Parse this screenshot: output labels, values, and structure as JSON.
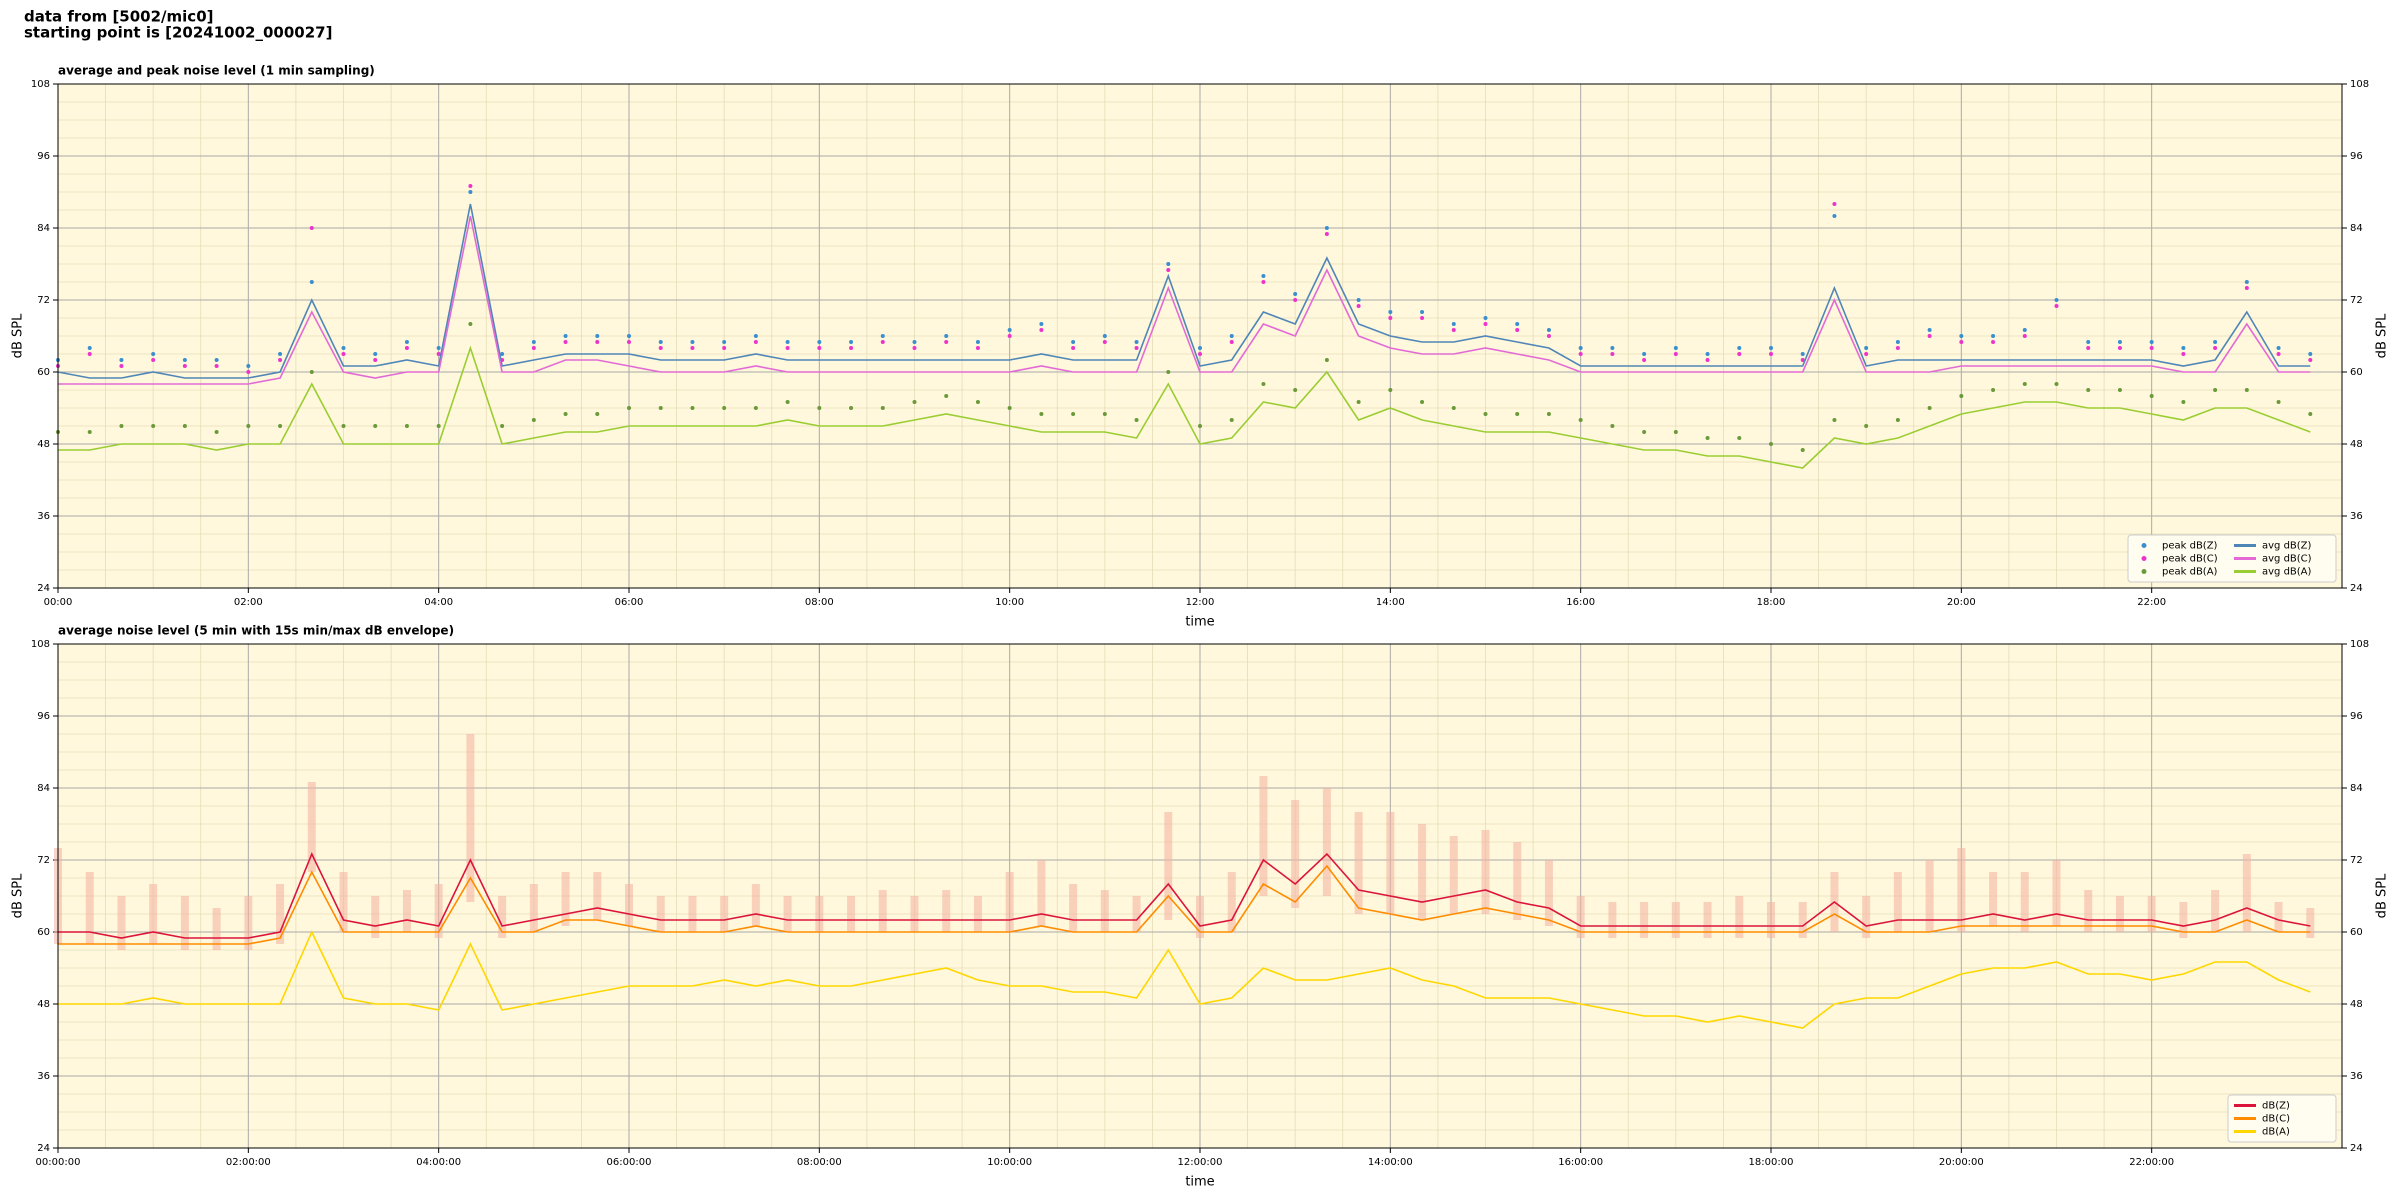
{
  "header": [
    "data from [5002/mic0]",
    "starting point is [20241002_000027]"
  ],
  "chart_data": [
    {
      "type": "line",
      "title": "average and peak noise level (1 min sampling)",
      "xlabel": "time",
      "ylabel": "dB SPL",
      "background": "#fff8dc",
      "grid": true,
      "legend": "lower right",
      "xlim": [
        0,
        1440
      ],
      "ylim": [
        24,
        108
      ],
      "yticks": [
        24,
        36,
        48,
        60,
        72,
        84,
        96,
        108
      ],
      "xticks": [
        {
          "value": 0,
          "label": "00:00"
        },
        {
          "value": 120,
          "label": "02:00"
        },
        {
          "value": 240,
          "label": "04:00"
        },
        {
          "value": 360,
          "label": "06:00"
        },
        {
          "value": 480,
          "label": "08:00"
        },
        {
          "value": 600,
          "label": "10:00"
        },
        {
          "value": 720,
          "label": "12:00"
        },
        {
          "value": 840,
          "label": "14:00"
        },
        {
          "value": 960,
          "label": "16:00"
        },
        {
          "value": 1080,
          "label": "18:00"
        },
        {
          "value": 1200,
          "label": "20:00"
        },
        {
          "value": 1320,
          "label": "22:00"
        }
      ],
      "x": [
        0,
        20,
        40,
        60,
        80,
        100,
        120,
        140,
        160,
        180,
        200,
        220,
        240,
        260,
        280,
        300,
        320,
        340,
        360,
        380,
        400,
        420,
        440,
        460,
        480,
        500,
        520,
        540,
        560,
        580,
        600,
        620,
        640,
        660,
        680,
        700,
        720,
        740,
        760,
        780,
        800,
        820,
        840,
        860,
        880,
        900,
        920,
        940,
        960,
        980,
        1000,
        1020,
        1040,
        1060,
        1080,
        1100,
        1120,
        1140,
        1160,
        1180,
        1200,
        1220,
        1240,
        1260,
        1280,
        1300,
        1320,
        1340,
        1360,
        1380,
        1400,
        1420
      ],
      "series": [
        {
          "name": "peak dB(Z)",
          "type": "scatter",
          "color": "#3a8fd0",
          "values": [
            62,
            64,
            62,
            63,
            62,
            62,
            61,
            63,
            75,
            64,
            63,
            65,
            64,
            90,
            63,
            65,
            66,
            66,
            66,
            65,
            65,
            65,
            66,
            65,
            65,
            65,
            66,
            65,
            66,
            65,
            67,
            68,
            65,
            66,
            65,
            78,
            64,
            66,
            76,
            73,
            84,
            72,
            70,
            70,
            68,
            69,
            68,
            67,
            64,
            64,
            63,
            64,
            63,
            64,
            64,
            63,
            86,
            64,
            65,
            67,
            66,
            66,
            67,
            72,
            65,
            65,
            65,
            64,
            65,
            75,
            64,
            63
          ]
        },
        {
          "name": "peak dB(C)",
          "type": "scatter",
          "color": "#ee33cc",
          "values": [
            61,
            63,
            61,
            62,
            61,
            61,
            60,
            62,
            84,
            63,
            62,
            64,
            63,
            91,
            62,
            64,
            65,
            65,
            65,
            64,
            64,
            64,
            65,
            64,
            64,
            64,
            65,
            64,
            65,
            64,
            66,
            67,
            64,
            65,
            64,
            77,
            63,
            65,
            75,
            72,
            83,
            71,
            69,
            69,
            67,
            68,
            67,
            66,
            63,
            63,
            62,
            63,
            62,
            63,
            63,
            62,
            88,
            63,
            64,
            66,
            65,
            65,
            66,
            71,
            64,
            64,
            64,
            63,
            64,
            74,
            63,
            62
          ]
        },
        {
          "name": "peak dB(A)",
          "type": "scatter",
          "color": "#6a9a3a",
          "values": [
            50,
            50,
            51,
            51,
            51,
            50,
            51,
            51,
            60,
            51,
            51,
            51,
            51,
            68,
            51,
            52,
            53,
            53,
            54,
            54,
            54,
            54,
            54,
            55,
            54,
            54,
            54,
            55,
            56,
            55,
            54,
            53,
            53,
            53,
            52,
            60,
            51,
            52,
            58,
            57,
            62,
            55,
            57,
            55,
            54,
            53,
            53,
            53,
            52,
            51,
            50,
            50,
            49,
            49,
            48,
            47,
            52,
            51,
            52,
            54,
            56,
            57,
            58,
            58,
            57,
            57,
            56,
            55,
            57,
            57,
            55,
            53
          ]
        },
        {
          "name": "avg dB(Z)",
          "type": "line",
          "color": "#4f86b8",
          "values": [
            60,
            59,
            59,
            60,
            59,
            59,
            59,
            60,
            72,
            61,
            61,
            62,
            61,
            88,
            61,
            62,
            63,
            63,
            63,
            62,
            62,
            62,
            63,
            62,
            62,
            62,
            62,
            62,
            62,
            62,
            62,
            63,
            62,
            62,
            62,
            76,
            61,
            62,
            70,
            68,
            79,
            68,
            66,
            65,
            65,
            66,
            65,
            64,
            61,
            61,
            61,
            61,
            61,
            61,
            61,
            61,
            74,
            61,
            62,
            62,
            62,
            62,
            62,
            62,
            62,
            62,
            62,
            61,
            62,
            70,
            61,
            61
          ]
        },
        {
          "name": "avg dB(C)",
          "type": "line",
          "color": "#e36ad6",
          "values": [
            58,
            58,
            58,
            58,
            58,
            58,
            58,
            59,
            70,
            60,
            59,
            60,
            60,
            86,
            60,
            60,
            62,
            62,
            61,
            60,
            60,
            60,
            61,
            60,
            60,
            60,
            60,
            60,
            60,
            60,
            60,
            61,
            60,
            60,
            60,
            74,
            60,
            60,
            68,
            66,
            77,
            66,
            64,
            63,
            63,
            64,
            63,
            62,
            60,
            60,
            60,
            60,
            60,
            60,
            60,
            60,
            72,
            60,
            60,
            60,
            61,
            61,
            61,
            61,
            61,
            61,
            61,
            60,
            60,
            68,
            60,
            60
          ]
        },
        {
          "name": "avg dB(A)",
          "type": "line",
          "color": "#9acd32",
          "values": [
            47,
            47,
            48,
            48,
            48,
            47,
            48,
            48,
            58,
            48,
            48,
            48,
            48,
            64,
            48,
            49,
            50,
            50,
            51,
            51,
            51,
            51,
            51,
            52,
            51,
            51,
            51,
            52,
            53,
            52,
            51,
            50,
            50,
            50,
            49,
            58,
            48,
            49,
            55,
            54,
            60,
            52,
            54,
            52,
            51,
            50,
            50,
            50,
            49,
            48,
            47,
            47,
            46,
            46,
            45,
            44,
            49,
            48,
            49,
            51,
            53,
            54,
            55,
            55,
            54,
            54,
            53,
            52,
            54,
            54,
            52,
            50
          ]
        }
      ]
    },
    {
      "type": "line",
      "title": "average noise level (5 min with 15s min/max dB envelope)",
      "xlabel": "time",
      "ylabel": "dB SPL",
      "background": "#fff8dc",
      "grid": true,
      "legend": "lower right",
      "xlim": [
        0,
        1440
      ],
      "ylim": [
        24,
        108
      ],
      "yticks": [
        24,
        36,
        48,
        60,
        72,
        84,
        96,
        108
      ],
      "xticks": [
        {
          "value": 0,
          "label": "00:00:00"
        },
        {
          "value": 120,
          "label": "02:00:00"
        },
        {
          "value": 240,
          "label": "04:00:00"
        },
        {
          "value": 360,
          "label": "06:00:00"
        },
        {
          "value": 480,
          "label": "08:00:00"
        },
        {
          "value": 600,
          "label": "10:00:00"
        },
        {
          "value": 720,
          "label": "12:00:00"
        },
        {
          "value": 840,
          "label": "14:00:00"
        },
        {
          "value": 960,
          "label": "16:00:00"
        },
        {
          "value": 1080,
          "label": "18:00:00"
        },
        {
          "value": 1200,
          "label": "20:00:00"
        },
        {
          "value": 1320,
          "label": "22:00:00"
        }
      ],
      "x": [
        0,
        20,
        40,
        60,
        80,
        100,
        120,
        140,
        160,
        180,
        200,
        220,
        240,
        260,
        280,
        300,
        320,
        340,
        360,
        380,
        400,
        420,
        440,
        460,
        480,
        500,
        520,
        540,
        560,
        580,
        600,
        620,
        640,
        660,
        680,
        700,
        720,
        740,
        760,
        780,
        800,
        820,
        840,
        860,
        880,
        900,
        920,
        940,
        960,
        980,
        1000,
        1020,
        1040,
        1060,
        1080,
        1100,
        1120,
        1140,
        1160,
        1180,
        1200,
        1220,
        1240,
        1260,
        1280,
        1300,
        1320,
        1340,
        1360,
        1380,
        1400,
        1420
      ],
      "series": [
        {
          "type": "band",
          "color": "#f4b0a0",
          "lower": [
            58,
            58,
            57,
            58,
            57,
            57,
            57,
            58,
            70,
            60,
            59,
            60,
            59,
            65,
            59,
            60,
            61,
            62,
            61,
            60,
            60,
            60,
            61,
            60,
            60,
            60,
            60,
            60,
            60,
            60,
            60,
            61,
            60,
            60,
            60,
            62,
            59,
            60,
            66,
            64,
            66,
            63,
            63,
            62,
            63,
            63,
            62,
            61,
            59,
            59,
            59,
            59,
            59,
            59,
            59,
            59,
            60,
            59,
            60,
            60,
            60,
            61,
            60,
            61,
            60,
            60,
            60,
            59,
            60,
            60,
            60,
            59
          ],
          "upper": [
            74,
            70,
            66,
            68,
            66,
            64,
            66,
            68,
            85,
            70,
            66,
            67,
            68,
            93,
            66,
            68,
            70,
            70,
            68,
            66,
            66,
            66,
            68,
            66,
            66,
            66,
            67,
            66,
            67,
            66,
            70,
            72,
            68,
            67,
            66,
            80,
            66,
            70,
            86,
            82,
            84,
            80,
            80,
            78,
            76,
            77,
            75,
            72,
            66,
            65,
            65,
            65,
            65,
            66,
            65,
            65,
            70,
            66,
            70,
            72,
            74,
            70,
            70,
            72,
            67,
            66,
            66,
            65,
            67,
            73,
            65,
            64
          ]
        },
        {
          "name": "dB(Z)",
          "type": "line",
          "color": "#dc143c",
          "values": [
            60,
            60,
            59,
            60,
            59,
            59,
            59,
            60,
            73,
            62,
            61,
            62,
            61,
            72,
            61,
            62,
            63,
            64,
            63,
            62,
            62,
            62,
            63,
            62,
            62,
            62,
            62,
            62,
            62,
            62,
            62,
            63,
            62,
            62,
            62,
            68,
            61,
            62,
            72,
            68,
            73,
            67,
            66,
            65,
            66,
            67,
            65,
            64,
            61,
            61,
            61,
            61,
            61,
            61,
            61,
            61,
            65,
            61,
            62,
            62,
            62,
            63,
            62,
            63,
            62,
            62,
            62,
            61,
            62,
            64,
            62,
            61
          ]
        },
        {
          "name": "dB(C)",
          "type": "line",
          "color": "#ff8c00",
          "values": [
            58,
            58,
            58,
            58,
            58,
            58,
            58,
            59,
            70,
            60,
            60,
            60,
            60,
            69,
            60,
            60,
            62,
            62,
            61,
            60,
            60,
            60,
            61,
            60,
            60,
            60,
            60,
            60,
            60,
            60,
            60,
            61,
            60,
            60,
            60,
            66,
            60,
            60,
            68,
            65,
            71,
            64,
            63,
            62,
            63,
            64,
            63,
            62,
            60,
            60,
            60,
            60,
            60,
            60,
            60,
            60,
            63,
            60,
            60,
            60,
            61,
            61,
            61,
            61,
            61,
            61,
            61,
            60,
            60,
            62,
            60,
            60
          ]
        },
        {
          "name": "dB(A)",
          "type": "line",
          "color": "#ffd700",
          "values": [
            48,
            48,
            48,
            49,
            48,
            48,
            48,
            48,
            60,
            49,
            48,
            48,
            47,
            58,
            47,
            48,
            49,
            50,
            51,
            51,
            51,
            52,
            51,
            52,
            51,
            51,
            52,
            53,
            54,
            52,
            51,
            51,
            50,
            50,
            49,
            57,
            48,
            49,
            54,
            52,
            52,
            53,
            54,
            52,
            51,
            49,
            49,
            49,
            48,
            47,
            46,
            46,
            45,
            46,
            45,
            44,
            48,
            49,
            49,
            51,
            53,
            54,
            54,
            55,
            53,
            53,
            52,
            53,
            55,
            55,
            52,
            50
          ]
        }
      ]
    }
  ]
}
